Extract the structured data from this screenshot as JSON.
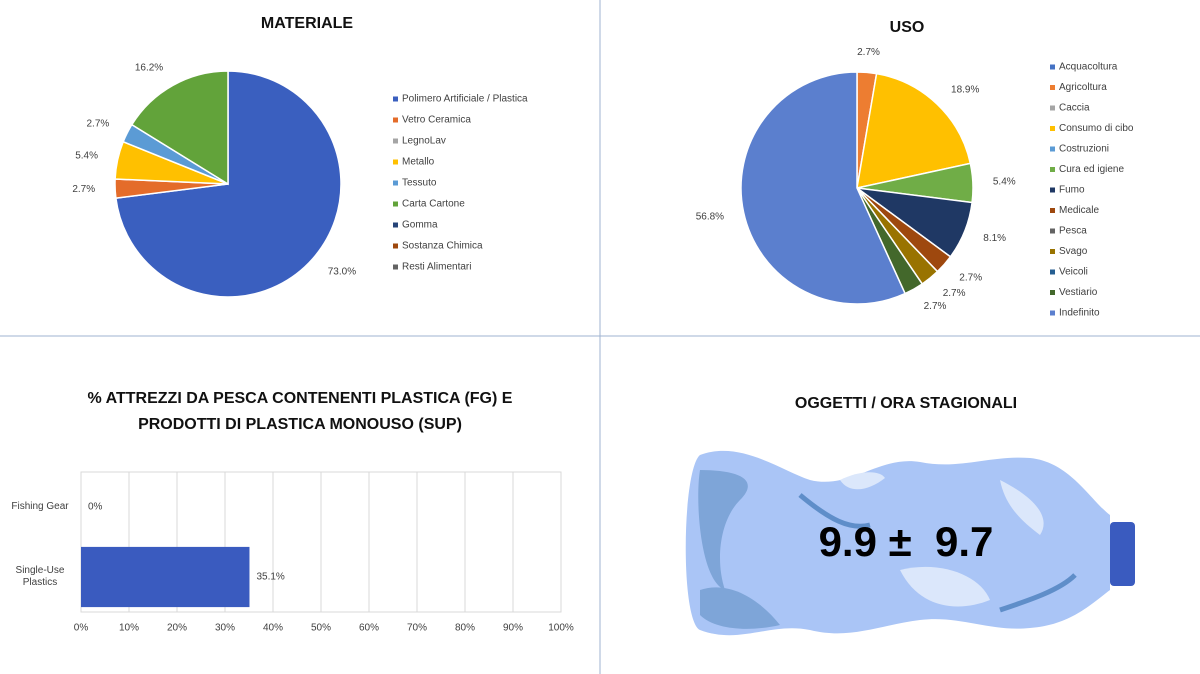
{
  "chart_data": [
    {
      "type": "pie",
      "title": "MATERIALE",
      "categories": [
        "Polimero Artificiale / Plastica",
        "Vetro Ceramica",
        "LegnoLav",
        "Metallo",
        "Tessuto",
        "Carta Cartone",
        "Gomma",
        "Sostanza Chimica",
        "Resti Alimentari"
      ],
      "values": [
        73.0,
        2.7,
        0,
        5.4,
        2.7,
        16.2,
        0,
        0,
        0
      ],
      "value_labels": [
        "73.0%",
        "2.7%",
        null,
        "5.4%",
        "2.7%",
        "16.2%",
        null,
        null,
        null
      ],
      "colors": [
        "#3a5fbf",
        "#e46c2a",
        "#a5a5a5",
        "#ffc000",
        "#5b9bd5",
        "#62a33a",
        "#264478",
        "#9e480e",
        "#636363"
      ],
      "legend": "right"
    },
    {
      "type": "pie",
      "title": "USO",
      "categories": [
        "Acquacoltura",
        "Agricoltura",
        "Caccia",
        "Consumo di cibo",
        "Costruzioni",
        "Cura ed igiene",
        "Fumo",
        "Medicale",
        "Pesca",
        "Svago",
        "Veicoli",
        "Vestiario",
        "Indefinito"
      ],
      "values": [
        0,
        2.7,
        0,
        18.9,
        0,
        5.4,
        8.1,
        2.7,
        0,
        2.7,
        0,
        2.7,
        56.8
      ],
      "value_labels": [
        null,
        "2.7%",
        null,
        "18.9%",
        null,
        "5.4%",
        "8.1%",
        "2.7%",
        null,
        "2.7%",
        null,
        "2.7%",
        "56.8%"
      ],
      "colors": [
        "#4472c4",
        "#ed7d31",
        "#a5a5a5",
        "#ffc000",
        "#5b9bd5",
        "#70ad47",
        "#1f3864",
        "#9e480e",
        "#636363",
        "#997300",
        "#255e91",
        "#43682b",
        "#5b7fce"
      ],
      "legend": "right"
    },
    {
      "type": "bar",
      "orientation": "horizontal",
      "title": "% ATTREZZI DA PESCA CONTENENTI PLASTICA  (FG) E PRODOTTI DI PLASTICA MONOUSO (SUP)",
      "categories": [
        "Fishing Gear",
        "Single-Use Plastics"
      ],
      "values": [
        0,
        35.1
      ],
      "value_labels": [
        "0%",
        "35.1%"
      ],
      "color": "#3a5bbf",
      "xlim": [
        0,
        100
      ],
      "xticks": [
        {
          "value": 0,
          "label": "0%"
        },
        {
          "value": 10,
          "label": "10%"
        },
        {
          "value": 20,
          "label": "20%"
        },
        {
          "value": 30,
          "label": "30%"
        },
        {
          "value": 40,
          "label": "40%"
        },
        {
          "value": 50,
          "label": "50%"
        },
        {
          "value": 60,
          "label": "60%"
        },
        {
          "value": 70,
          "label": "70%"
        },
        {
          "value": 80,
          "label": "80%"
        },
        {
          "value": 90,
          "label": "90%"
        },
        {
          "value": 100,
          "label": "100%"
        }
      ],
      "grid": true
    }
  ],
  "stat_panel": {
    "title": "OGGETTI / ORA STAGIONALI",
    "text": "9.9 ±  9.7"
  }
}
